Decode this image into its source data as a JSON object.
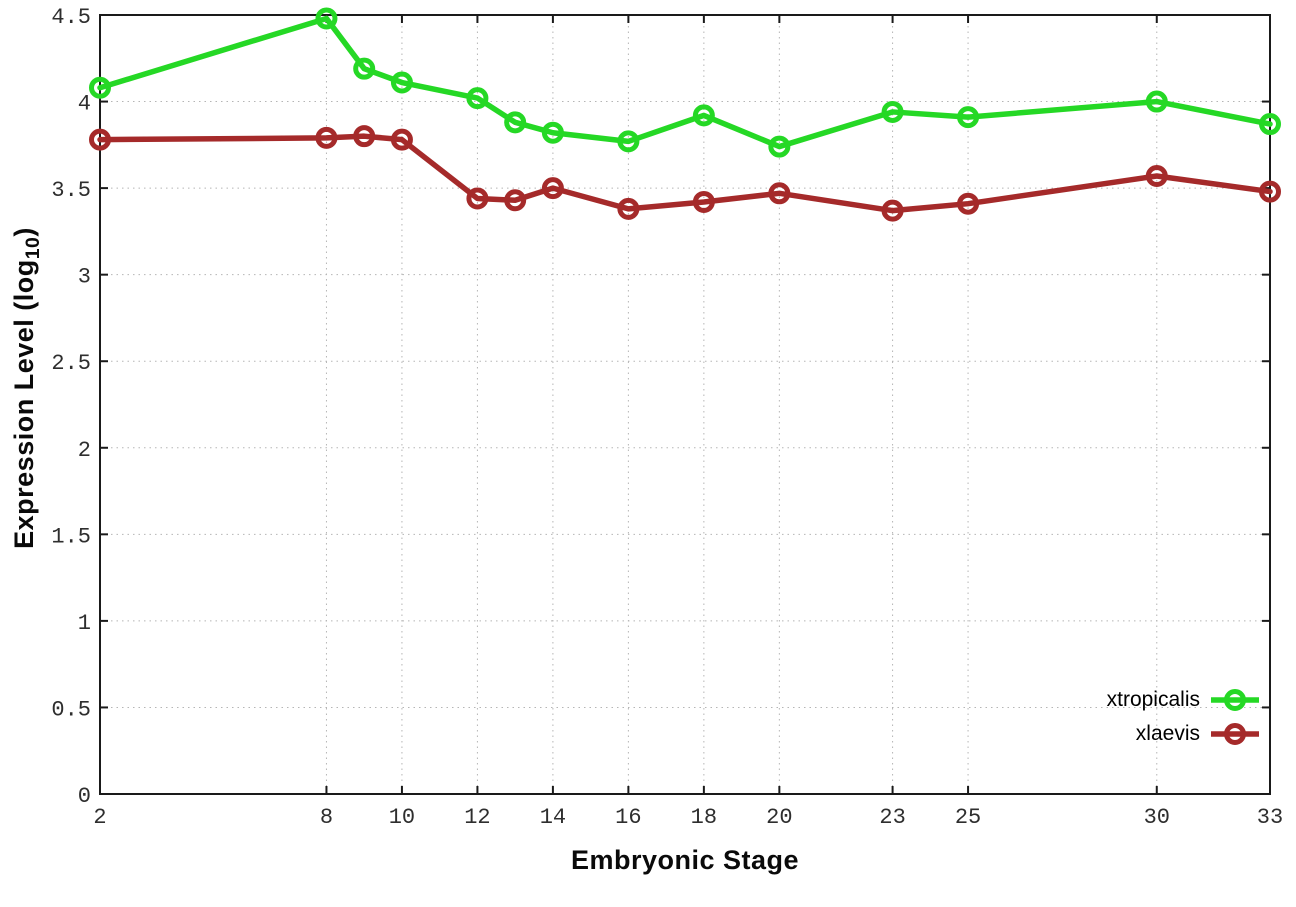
{
  "chart_data": {
    "type": "line",
    "title": "",
    "xlabel": "Embryonic Stage",
    "ylabel": "Expression Level (log10)",
    "ylabel_parts": {
      "main": "Expression Level (log",
      "sub": "10",
      "close": ")"
    },
    "x": [
      2,
      8,
      9,
      10,
      12,
      13,
      14,
      16,
      18,
      20,
      23,
      25,
      30,
      33
    ],
    "xlim": [
      2,
      33
    ],
    "ylim": [
      0,
      4.5
    ],
    "x_ticks": [
      2,
      8,
      10,
      12,
      14,
      16,
      18,
      20,
      23,
      25,
      30,
      33
    ],
    "x_tick_labels": [
      "2",
      "8",
      "10",
      "12",
      "14",
      "16",
      "18",
      "20",
      "23",
      "25",
      "30",
      "33"
    ],
    "y_ticks": [
      0,
      0.5,
      1,
      1.5,
      2,
      2.5,
      3,
      3.5,
      4,
      4.5
    ],
    "y_tick_labels": [
      "0",
      "0.5",
      "1",
      "1.5",
      "2",
      "2.5",
      "3",
      "3.5",
      "4",
      "4.5"
    ],
    "grid": true,
    "legend_position": "bottom-right",
    "series": [
      {
        "name": "xtropicalis",
        "color": "#25d825",
        "values": [
          4.08,
          4.48,
          4.19,
          4.11,
          4.02,
          3.88,
          3.82,
          3.77,
          3.92,
          3.74,
          3.94,
          3.91,
          4.0,
          3.87
        ]
      },
      {
        "name": "xlaevis",
        "color": "#a52a2a",
        "values": [
          3.78,
          3.79,
          3.8,
          3.78,
          3.44,
          3.43,
          3.5,
          3.38,
          3.42,
          3.47,
          3.37,
          3.41,
          3.57,
          3.48
        ]
      }
    ],
    "colors": {
      "axis": "#1a1a1a",
      "grid": "#b5b5b5",
      "tick_text": "#2e2e2e"
    }
  }
}
